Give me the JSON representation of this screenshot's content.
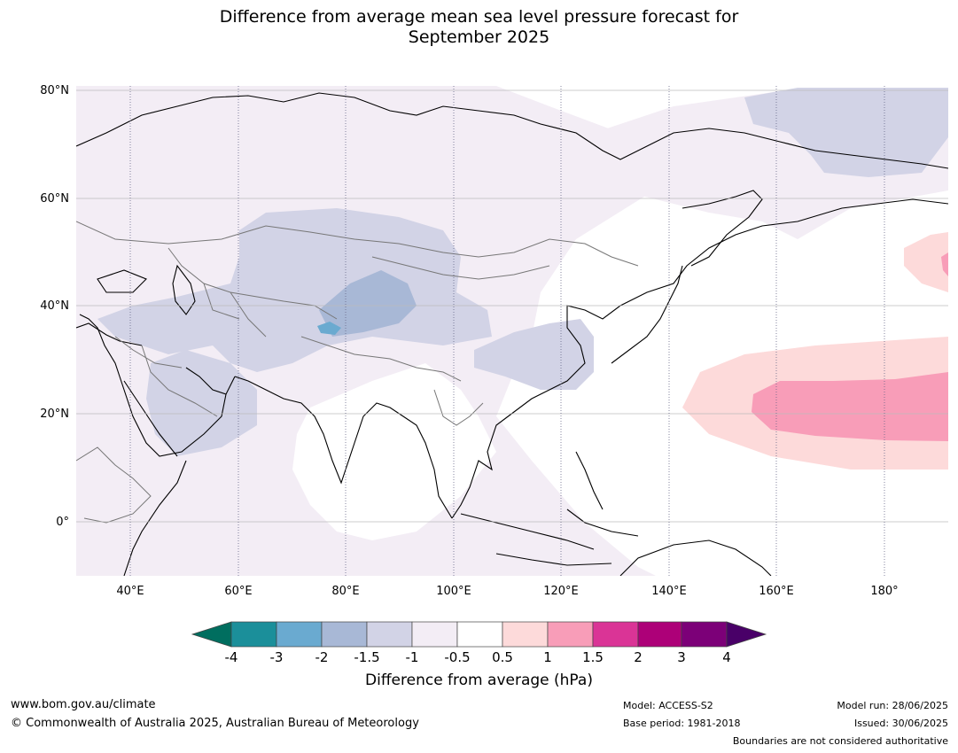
{
  "title": {
    "line1": "Difference from average mean sea level pressure forecast for",
    "line2": "September 2025"
  },
  "axes": {
    "lat_labels": [
      "80°N",
      "60°N",
      "40°N",
      "20°N",
      "0°"
    ],
    "lon_labels": [
      "40°E",
      "60°E",
      "80°E",
      "100°E",
      "120°E",
      "140°E",
      "160°E",
      "180°"
    ]
  },
  "colorbar": {
    "title": "Difference from average (hPa)",
    "tick_labels": [
      "-4",
      "-3",
      "-2",
      "-1.5",
      "-1",
      "-0.5",
      "0.5",
      "1",
      "1.5",
      "2",
      "3",
      "4"
    ],
    "colors": [
      "#006e5f",
      "#1b8f9a",
      "#6aaad0",
      "#a8b8d6",
      "#d2d3e6",
      "#f3edf5",
      "#ffffff",
      "#fddada",
      "#f89db8",
      "#da3496",
      "#ad0078",
      "#7c0078",
      "#490068"
    ]
  },
  "footer": {
    "website": "www.bom.gov.au/climate",
    "copyright": "© Commonwealth of Australia 2025, Australian Bureau of Meteorology",
    "model": "Model: ACCESS-S2",
    "base_period": "Base period: 1981-2018",
    "model_run": "Model run: 28/06/2025",
    "issued": "Issued: 30/06/2025",
    "disclaimer": "Boundaries are not considered authoritative"
  }
}
